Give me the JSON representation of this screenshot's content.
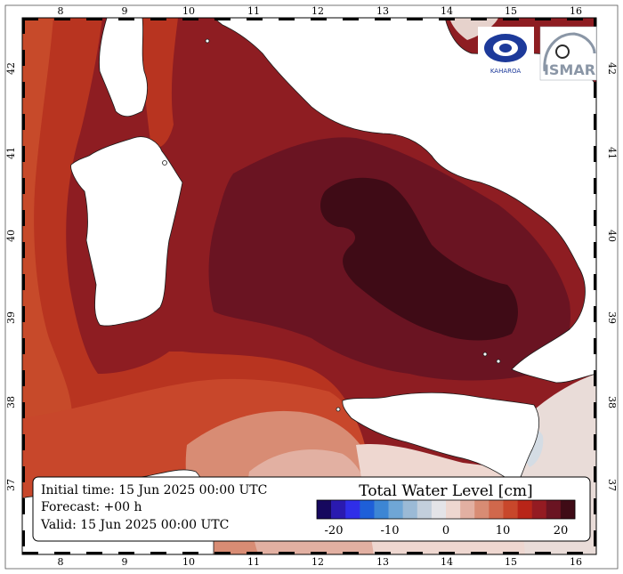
{
  "map": {
    "lon_ticks": [
      "8",
      "9",
      "10",
      "11",
      "12",
      "13",
      "14",
      "15",
      "16"
    ],
    "lat_ticks": [
      "42",
      "41",
      "40",
      "39",
      "38",
      "37"
    ],
    "land_color": "#ffffff",
    "coast_color": "#1a1a1a"
  },
  "info": {
    "initial": "Initial time: 15 Jun 2025 00:00 UTC",
    "forecast": "Forecast: +00 h",
    "valid": "Valid: 15 Jun 2025 00:00 UTC"
  },
  "legend": {
    "title": "Total Water Level [cm]",
    "tick_labels": [
      "-20",
      "-10",
      "0",
      "10",
      "20"
    ],
    "colors": [
      "#16085e",
      "#2a1ab0",
      "#2f2ee8",
      "#1e5fd8",
      "#3d86d4",
      "#6fa6d6",
      "#9bbad6",
      "#c3cfdc",
      "#e4e4e8",
      "#eed7d0",
      "#e2b0a2",
      "#d88c74",
      "#d0684c",
      "#c8472b",
      "#b82518",
      "#941b22",
      "#6a1422",
      "#3f0b16"
    ]
  },
  "logos": {
    "left": "KAHAROA",
    "right": "ISMAR"
  }
}
